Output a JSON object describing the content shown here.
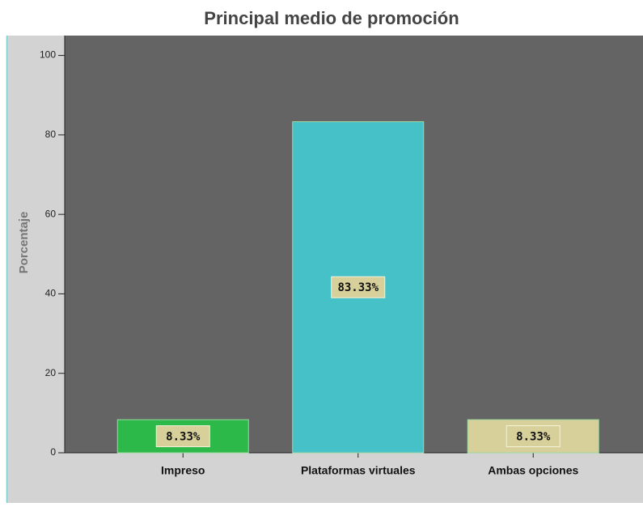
{
  "chart_data": {
    "type": "bar",
    "title": "Principal medio de promoción",
    "y_label": "Porcentaje",
    "categories": [
      "Impreso",
      "Plataformas virtuales",
      "Ambas opciones"
    ],
    "values": [
      8.33,
      83.33,
      8.33
    ],
    "value_labels": [
      "8.33%",
      "83.33%",
      "8.33%"
    ],
    "colors": [
      "#2db84a",
      "#47c1c8",
      "#d7d09a"
    ],
    "ylim": [
      0,
      105
    ],
    "yticks": [
      0,
      20,
      40,
      60,
      80,
      100
    ]
  }
}
